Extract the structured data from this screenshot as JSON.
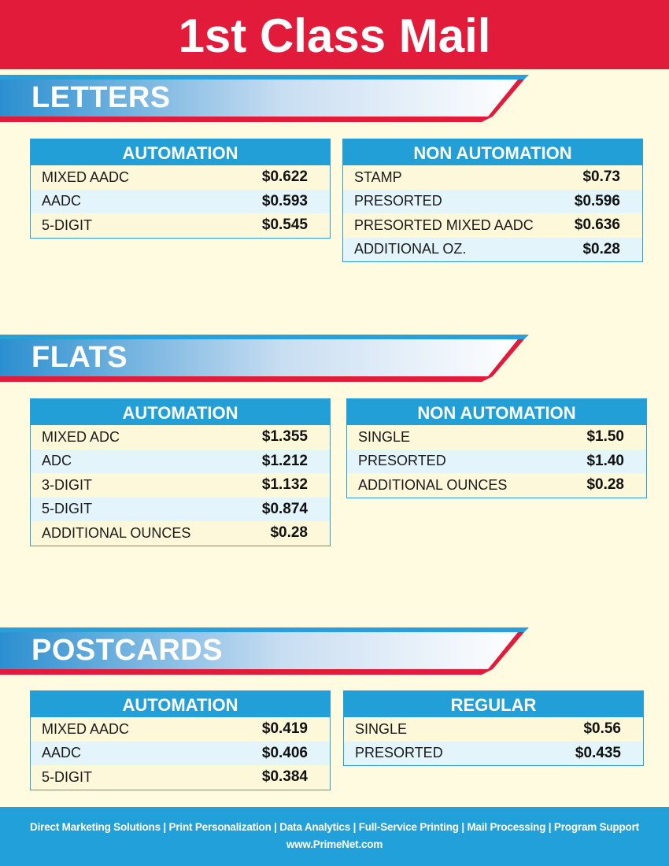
{
  "title": "1st Class Mail",
  "colors": {
    "red": "#e31b3b",
    "blue": "#239fd8",
    "cream": "#fffbe1"
  },
  "sections": [
    {
      "name": "LETTERS",
      "tables": [
        {
          "header": "AUTOMATION",
          "rows": [
            [
              "MIXED AADC",
              "$0.622"
            ],
            [
              "AADC",
              "$0.593"
            ],
            [
              "5-DIGIT",
              "$0.545"
            ]
          ]
        },
        {
          "header": "NON AUTOMATION",
          "rows": [
            [
              "STAMP",
              "$0.73"
            ],
            [
              "PRESORTED",
              "$0.596"
            ],
            [
              "PRESORTED MIXED AADC",
              "$0.636"
            ],
            [
              "ADDITIONAL OZ.",
              "$0.28"
            ]
          ]
        }
      ]
    },
    {
      "name": "FLATS",
      "tables": [
        {
          "header": "AUTOMATION",
          "rows": [
            [
              "MIXED ADC",
              "$1.355"
            ],
            [
              "ADC",
              "$1.212"
            ],
            [
              "3-DIGIT",
              "$1.132"
            ],
            [
              "5-DIGIT",
              "$0.874"
            ],
            [
              "ADDITIONAL OUNCES",
              "$0.28"
            ]
          ]
        },
        {
          "header": "NON AUTOMATION",
          "rows": [
            [
              "SINGLE",
              "$1.50"
            ],
            [
              "PRESORTED",
              "$1.40"
            ],
            [
              "ADDITIONAL OUNCES",
              "$0.28"
            ]
          ]
        }
      ]
    },
    {
      "name": "POSTCARDS",
      "tables": [
        {
          "header": "AUTOMATION",
          "rows": [
            [
              "MIXED AADC",
              "$0.419"
            ],
            [
              "AADC",
              "$0.406"
            ],
            [
              "5-DIGIT",
              "$0.384"
            ]
          ]
        },
        {
          "header": "REGULAR",
          "rows": [
            [
              "SINGLE",
              "$0.56"
            ],
            [
              "PRESORTED",
              "$0.435"
            ]
          ]
        }
      ]
    }
  ],
  "footer": {
    "services": "Direct Marketing Solutions | Print Personalization | Data Analytics | Full-Service Printing | Mail Processing | Program Support",
    "website": "www.PrimeNet.com"
  }
}
